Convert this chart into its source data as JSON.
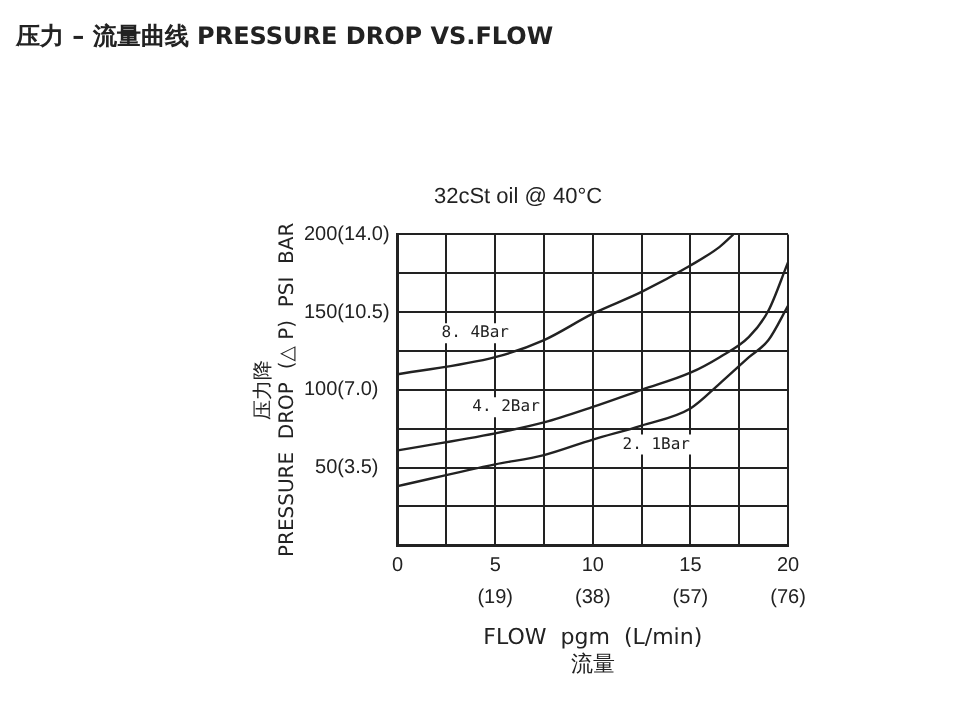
{
  "chart_data": {
    "type": "line",
    "title": "压力 – 流量曲线 PRESSURE DROP VS.FLOW",
    "subtitle": "32cSt oil @ 40°C",
    "xlabel": "FLOW  pgm  (L/min)\n流量",
    "ylabel": "压力降\nPRESSURE  DROP  (△ P)  PSI  BAR",
    "x": [
      0,
      5,
      7.5,
      10,
      12.5,
      15,
      16.5,
      18,
      19,
      20
    ],
    "series": [
      {
        "name": "8. 4Bar",
        "color": "#222222",
        "x": [
          0,
          5,
          7.5,
          10,
          12.5,
          15,
          16.5,
          17.2
        ],
        "values": [
          110,
          121,
          132,
          149,
          163,
          180,
          192,
          200
        ]
      },
      {
        "name": "4. 2Bar",
        "color": "#222222",
        "values": [
          61,
          72,
          79,
          89,
          100,
          111,
          121,
          134,
          151,
          182
        ]
      },
      {
        "name": "2. 1Bar",
        "color": "#222222",
        "values": [
          38,
          52,
          58,
          68,
          77,
          88,
          104,
          121,
          132,
          154
        ]
      }
    ],
    "xlim": [
      0,
      20
    ],
    "xticks": [
      0,
      {
        "value": 2.5,
        "label": null
      },
      5,
      {
        "value": 7.5,
        "label": null
      },
      10,
      {
        "value": 12.5,
        "label": null
      },
      15,
      {
        "value": 17.5,
        "label": null
      },
      20
    ],
    "x2lim": [
      0,
      76
    ],
    "x2ticks": [
      {
        "value": 19,
        "label": "(19)"
      },
      {
        "value": 38,
        "label": "(38)"
      },
      {
        "value": 57,
        "label": "(57)"
      },
      {
        "value": 76,
        "label": "(76)"
      }
    ],
    "ylim": [
      0,
      200
    ],
    "yticks": [
      {
        "value": 0,
        "label": null
      },
      {
        "value": 25,
        "label": null
      },
      50,
      {
        "value": 75,
        "label": null
      },
      100,
      {
        "value": 125,
        "label": null
      },
      150,
      {
        "value": 175,
        "label": null
      },
      200
    ],
    "y2lim": [
      0,
      14
    ],
    "y2ticks": [
      {
        "value": 3.5,
        "label": "(3.5)"
      },
      {
        "value": 7,
        "label": "(7.0)"
      },
      {
        "value": 10.5,
        "label": "(10.5)"
      },
      {
        "value": 14,
        "label": "(14.0)"
      }
    ],
    "grid": true,
    "legend": false,
    "marker": "none",
    "line_style": "solid"
  }
}
